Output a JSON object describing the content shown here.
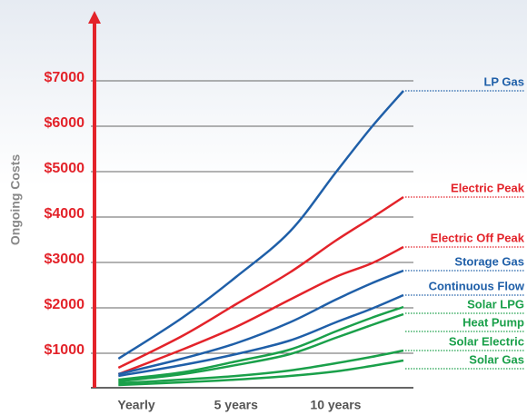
{
  "chart_data": {
    "type": "line",
    "y_label": "Ongoing Costs",
    "x": [
      -0.9,
      2.3,
      5,
      7.7,
      10,
      11.8,
      13.4
    ],
    "xlim": [
      -2.1,
      13.9
    ],
    "xticks": [
      {
        "value": 0,
        "label": "Yearly"
      },
      {
        "value": 5,
        "label": "5 years"
      },
      {
        "value": 10,
        "label": "10 years"
      }
    ],
    "ylim": [
      240,
      8540
    ],
    "yticks": [
      {
        "value": 1000,
        "label": "$1000"
      },
      {
        "value": 2000,
        "label": "$2000"
      },
      {
        "value": 3000,
        "label": "$3000"
      },
      {
        "value": 4000,
        "label": "$4000"
      },
      {
        "value": 5000,
        "label": "$5000"
      },
      {
        "value": 6000,
        "label": "$6000"
      },
      {
        "value": 7000,
        "label": "$7000"
      }
    ],
    "grid": true,
    "series": [
      {
        "name": "LP Gas",
        "color": "#1f5fa8",
        "values": [
          880,
          1780,
          2680,
          3680,
          4980,
          5980,
          6780
        ]
      },
      {
        "name": "Electric Peak",
        "color": "#e3232a",
        "values": [
          680,
          1380,
          2080,
          2780,
          3480,
          3980,
          4440
        ]
      },
      {
        "name": "Electric Off Peak",
        "color": "#e3232a",
        "values": [
          540,
          1080,
          1580,
          2180,
          2680,
          2980,
          3340
        ]
      },
      {
        "name": "Storage Gas",
        "color": "#1f5fa8",
        "values": [
          540,
          880,
          1220,
          1680,
          2180,
          2540,
          2820
        ]
      },
      {
        "name": "Continuous Flow",
        "color": "#1f5fa8",
        "values": [
          500,
          740,
          980,
          1280,
          1680,
          1980,
          2280
        ]
      },
      {
        "name": "Solar LPG",
        "color": "#1aa04a",
        "values": [
          420,
          580,
          820,
          1080,
          1480,
          1780,
          2020
        ]
      },
      {
        "name": "Heat Pump",
        "color": "#1aa04a",
        "values": [
          380,
          540,
          740,
          980,
          1340,
          1620,
          1860
        ]
      },
      {
        "name": "Solar Electric",
        "color": "#1aa04a",
        "values": [
          340,
          420,
          500,
          620,
          780,
          920,
          1060
        ]
      },
      {
        "name": "Solar Gas",
        "color": "#1aa04a",
        "values": [
          300,
          360,
          420,
          500,
          600,
          720,
          840
        ]
      }
    ]
  }
}
